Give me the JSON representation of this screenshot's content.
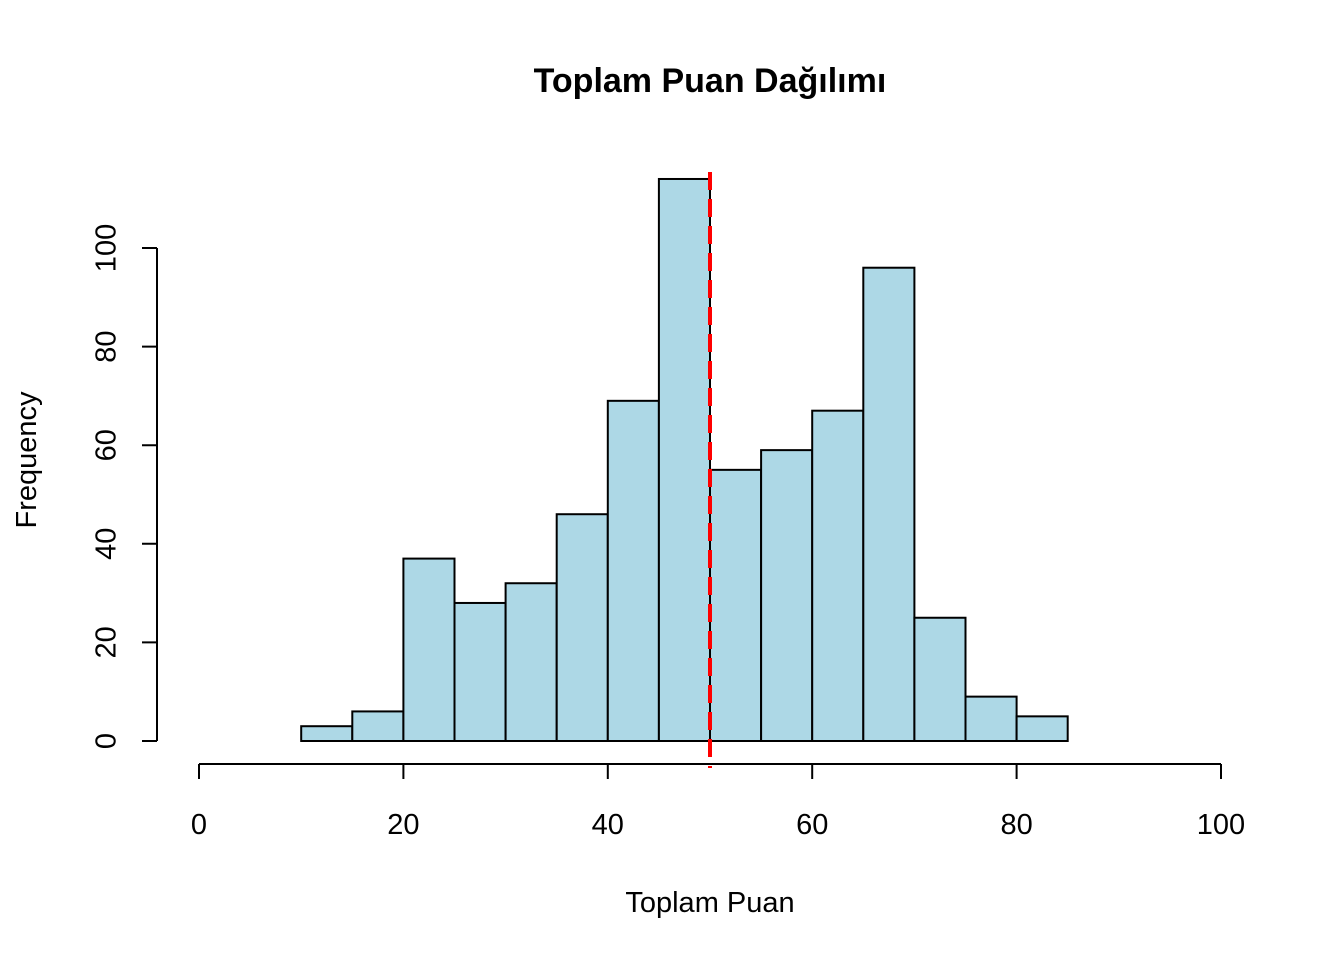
{
  "chart_data": {
    "type": "bar",
    "title": "Toplam Puan Dağılımı",
    "xlabel": "Toplam Puan",
    "ylabel": "Frequency",
    "bins": [
      {
        "start": 10,
        "end": 15,
        "count": 3
      },
      {
        "start": 15,
        "end": 20,
        "count": 6
      },
      {
        "start": 20,
        "end": 25,
        "count": 37
      },
      {
        "start": 25,
        "end": 30,
        "count": 28
      },
      {
        "start": 30,
        "end": 35,
        "count": 32
      },
      {
        "start": 35,
        "end": 40,
        "count": 46
      },
      {
        "start": 40,
        "end": 45,
        "count": 69
      },
      {
        "start": 45,
        "end": 50,
        "count": 114
      },
      {
        "start": 50,
        "end": 55,
        "count": 55
      },
      {
        "start": 55,
        "end": 60,
        "count": 59
      },
      {
        "start": 60,
        "end": 65,
        "count": 67
      },
      {
        "start": 65,
        "end": 70,
        "count": 96
      },
      {
        "start": 70,
        "end": 75,
        "count": 25
      },
      {
        "start": 75,
        "end": 80,
        "count": 9
      },
      {
        "start": 80,
        "end": 85,
        "count": 5
      }
    ],
    "xlim": [
      0,
      100
    ],
    "ylim": [
      0,
      114
    ],
    "x_ticks": [
      "0",
      "20",
      "40",
      "60",
      "80",
      "100"
    ],
    "y_ticks": [
      "0",
      "20",
      "40",
      "60",
      "80",
      "100"
    ],
    "reference_line": {
      "x": 50,
      "color": "#ff0000",
      "style": "dashed"
    },
    "bar_color": "#add8e6",
    "grid": false
  }
}
